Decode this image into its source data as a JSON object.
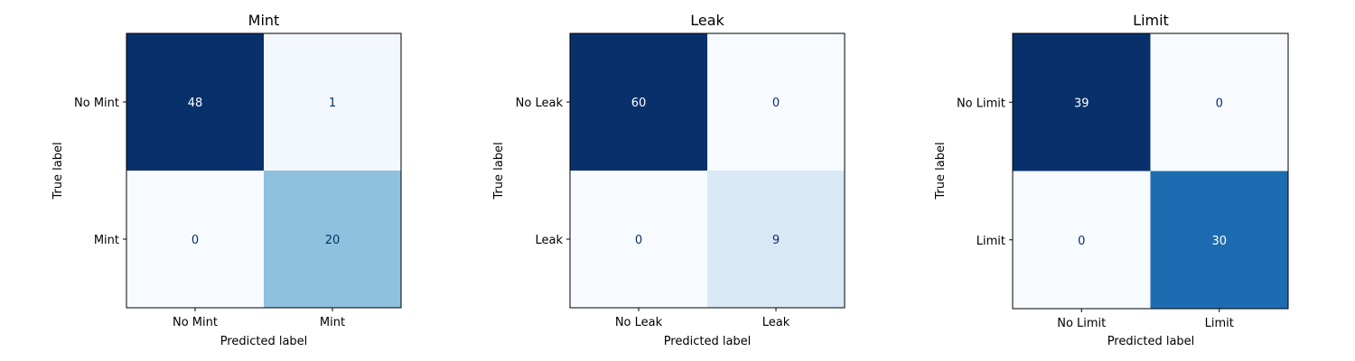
{
  "chart_data": [
    {
      "type": "heatmap",
      "title": "Mint",
      "xlabel": "Predicted label",
      "ylabel": "True label",
      "x_categories": [
        "No Mint",
        "Mint"
      ],
      "y_categories": [
        "No Mint",
        "Mint"
      ],
      "values": [
        [
          48,
          1
        ],
        [
          0,
          20
        ]
      ],
      "colormap": "Blues",
      "colorbar": false,
      "grid": false
    },
    {
      "type": "heatmap",
      "title": "Leak",
      "xlabel": "Predicted label",
      "ylabel": "True label",
      "x_categories": [
        "No Leak",
        "Leak"
      ],
      "y_categories": [
        "No Leak",
        "Leak"
      ],
      "values": [
        [
          60,
          0
        ],
        [
          0,
          9
        ]
      ],
      "colormap": "Blues",
      "colorbar": false,
      "grid": false
    },
    {
      "type": "heatmap",
      "title": "Limit",
      "xlabel": "Predicted label",
      "ylabel": "True label",
      "x_categories": [
        "No Limit",
        "Limit"
      ],
      "y_categories": [
        "No Limit",
        "Limit"
      ],
      "values": [
        [
          39,
          0
        ],
        [
          0,
          30
        ]
      ],
      "colormap": "Blues",
      "colorbar": false,
      "grid": false
    }
  ]
}
